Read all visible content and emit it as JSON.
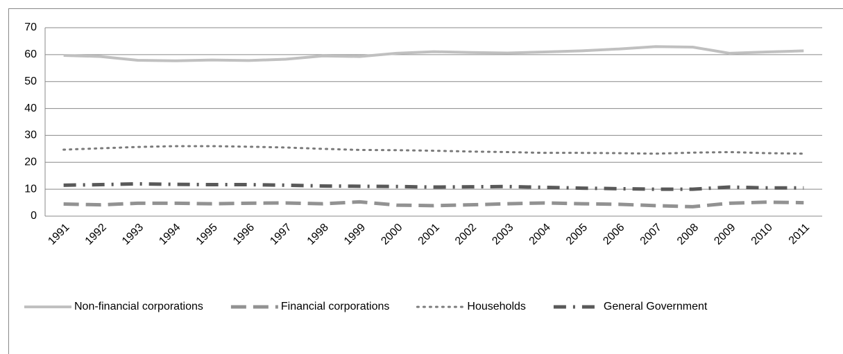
{
  "chart_data": {
    "type": "line",
    "categories": [
      "1991",
      "1992",
      "1993",
      "1994",
      "1995",
      "1996",
      "1997",
      "1998",
      "1999",
      "2000",
      "2001",
      "2002",
      "2003",
      "2004",
      "2005",
      "2006",
      "2007",
      "2008",
      "2009",
      "2010",
      "2011"
    ],
    "series": [
      {
        "name": "Non-financial corporations",
        "color": "#c0c0c0",
        "dash": "solid",
        "values": [
          59.7,
          59.3,
          57.9,
          57.7,
          58.0,
          57.8,
          58.3,
          59.5,
          59.3,
          60.5,
          61.1,
          60.8,
          60.6,
          61.0,
          61.4,
          62.1,
          63.0,
          62.8,
          60.5,
          61.0,
          61.4
        ]
      },
      {
        "name": "Financial corporations",
        "color": "#929292",
        "dash": "dashed",
        "values": [
          4.5,
          4.2,
          4.8,
          4.8,
          4.6,
          4.8,
          4.9,
          4.6,
          5.3,
          4.1,
          3.9,
          4.2,
          4.6,
          4.9,
          4.6,
          4.4,
          3.9,
          3.5,
          4.8,
          5.2,
          5.0
        ]
      },
      {
        "name": "Households",
        "color": "#7a7a7a",
        "dash": "dotted",
        "values": [
          24.7,
          25.2,
          25.7,
          26.0,
          26.0,
          25.8,
          25.5,
          25.0,
          24.6,
          24.5,
          24.3,
          24.0,
          23.8,
          23.5,
          23.5,
          23.4,
          23.2,
          23.6,
          23.8,
          23.4,
          23.2
        ]
      },
      {
        "name": "General Government",
        "color": "#595959",
        "dash": "dashdot",
        "values": [
          11.5,
          11.7,
          12.0,
          11.8,
          11.7,
          11.7,
          11.5,
          11.2,
          11.1,
          11.0,
          10.8,
          10.9,
          11.0,
          10.7,
          10.4,
          10.2,
          10.0,
          10.0,
          10.8,
          10.5,
          10.5
        ]
      }
    ],
    "ylim": [
      0,
      70
    ],
    "yticks": [
      0,
      10,
      20,
      30,
      40,
      50,
      60,
      70
    ],
    "grid": true,
    "legend": "bottom"
  }
}
